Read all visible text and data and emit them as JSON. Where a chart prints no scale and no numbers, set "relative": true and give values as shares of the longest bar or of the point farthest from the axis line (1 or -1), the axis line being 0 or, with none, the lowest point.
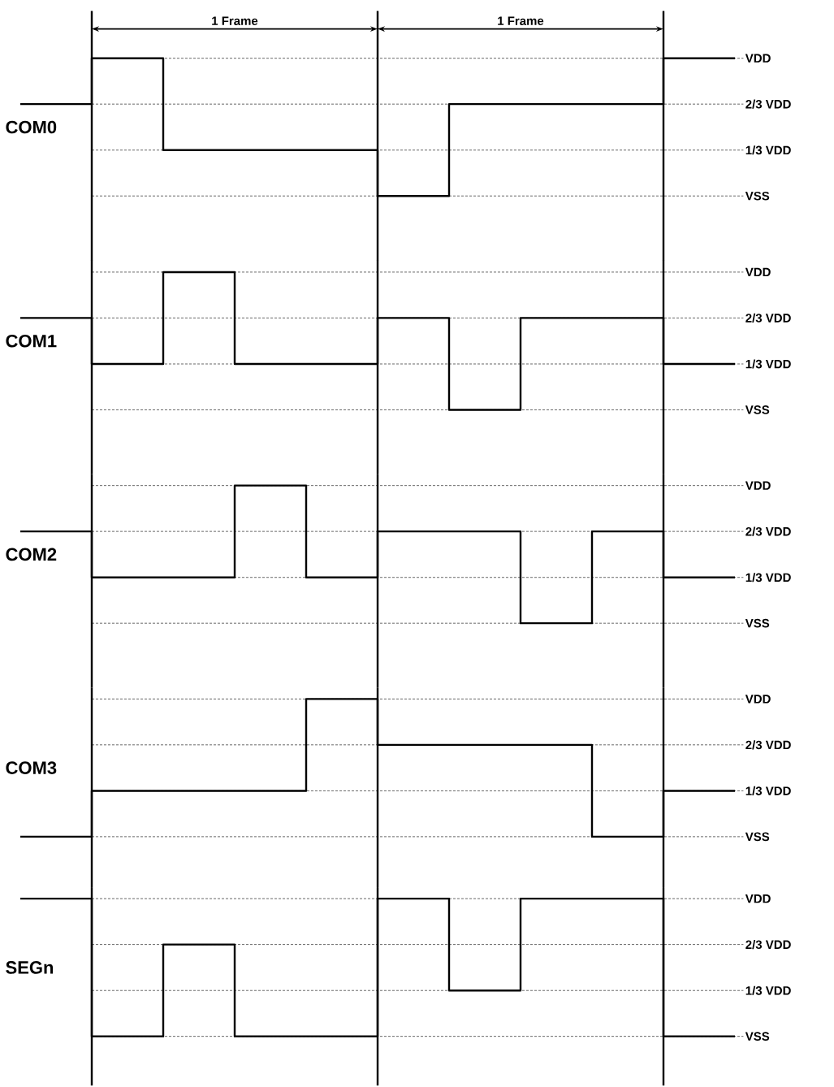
{
  "chart_data": [
    {
      "type": "step",
      "relative": true,
      "ylabel": "COM0",
      "grid": true,
      "categories": [
        null,
        null,
        null,
        null,
        null,
        null,
        null,
        null,
        null,
        null,
        null
      ],
      "line_style": "solid",
      "series": [
        {
          "color": "#000000",
          "values": [
            0.667,
            1,
            0.333,
            0.333,
            0.333,
            0,
            0.667,
            0.667,
            0.667,
            1,
            1
          ]
        }
      ],
      "ref_lines": [
        {
          "axis": "y",
          "value": 1,
          "label": "VDD"
        },
        {
          "axis": "y",
          "value": 0.667,
          "label": "2/3 VDD"
        },
        {
          "axis": "y",
          "value": 0.333,
          "label": "1/3 VDD"
        },
        {
          "axis": "y",
          "value": 0,
          "label": "VSS"
        }
      ],
      "annotations": [
        "1 Frame",
        "1 Frame"
      ]
    },
    {
      "type": "step",
      "relative": true,
      "ylabel": "COM1",
      "grid": true,
      "categories": [
        null,
        null,
        null,
        null,
        null,
        null,
        null,
        null,
        null,
        null,
        null
      ],
      "line_style": "solid",
      "series": [
        {
          "color": "#000000",
          "values": [
            0.667,
            0.333,
            1,
            0.333,
            0.333,
            0.667,
            0,
            0.667,
            0.667,
            0.333,
            0.333
          ]
        }
      ],
      "ref_lines": [
        {
          "axis": "y",
          "value": 1,
          "label": "VDD"
        },
        {
          "axis": "y",
          "value": 0.667,
          "label": "2/3 VDD"
        },
        {
          "axis": "y",
          "value": 0.333,
          "label": "1/3 VDD"
        },
        {
          "axis": "y",
          "value": 0,
          "label": "VSS"
        }
      ]
    },
    {
      "type": "step",
      "relative": true,
      "ylabel": "COM2",
      "grid": true,
      "categories": [
        null,
        null,
        null,
        null,
        null,
        null,
        null,
        null,
        null,
        null,
        null
      ],
      "line_style": "solid",
      "series": [
        {
          "color": "#000000",
          "values": [
            0.667,
            0.333,
            0.333,
            1,
            0.333,
            0.667,
            0.667,
            0,
            0.667,
            0.333,
            0.333
          ]
        }
      ],
      "ref_lines": [
        {
          "axis": "y",
          "value": 1,
          "label": "VDD"
        },
        {
          "axis": "y",
          "value": 0.667,
          "label": "2/3 VDD"
        },
        {
          "axis": "y",
          "value": 0.333,
          "label": "1/3 VDD"
        },
        {
          "axis": "y",
          "value": 0,
          "label": "VSS"
        }
      ]
    },
    {
      "type": "step",
      "relative": true,
      "ylabel": "COM3",
      "grid": true,
      "categories": [
        null,
        null,
        null,
        null,
        null,
        null,
        null,
        null,
        null,
        null,
        null
      ],
      "line_style": "solid",
      "series": [
        {
          "color": "#000000",
          "values": [
            0,
            0.333,
            0.333,
            0.333,
            1,
            0.667,
            0.667,
            0.667,
            0,
            0.333,
            0.333
          ]
        }
      ],
      "ref_lines": [
        {
          "axis": "y",
          "value": 1,
          "label": "VDD"
        },
        {
          "axis": "y",
          "value": 0.667,
          "label": "2/3 VDD"
        },
        {
          "axis": "y",
          "value": 0.333,
          "label": "1/3 VDD"
        },
        {
          "axis": "y",
          "value": 0,
          "label": "VSS"
        }
      ]
    },
    {
      "type": "step",
      "relative": true,
      "ylabel": "SEGn",
      "grid": true,
      "categories": [
        null,
        null,
        null,
        null,
        null,
        null,
        null,
        null,
        null,
        null,
        null
      ],
      "line_style": "solid",
      "series": [
        {
          "color": "#000000",
          "values": [
            1,
            0,
            0.667,
            0,
            0,
            1,
            0.333,
            1,
            1,
            0,
            0
          ]
        }
      ],
      "ref_lines": [
        {
          "axis": "y",
          "value": 1,
          "label": "VDD"
        },
        {
          "axis": "y",
          "value": 0.667,
          "label": "2/3 VDD"
        },
        {
          "axis": "y",
          "value": 0.333,
          "label": "1/3 VDD"
        },
        {
          "axis": "y",
          "value": 0,
          "label": "VSS"
        }
      ]
    }
  ]
}
